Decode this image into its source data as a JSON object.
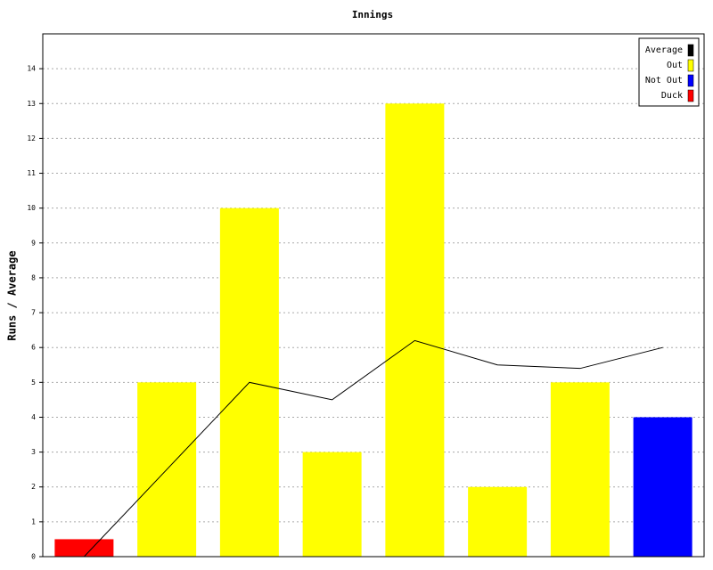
{
  "chart_data": {
    "type": "bar",
    "title": "Innings",
    "y_label": "Runs / Average",
    "series": [
      {
        "name": "Average",
        "type": "line",
        "color": "#000000",
        "values": [
          0,
          2.5,
          5,
          4.5,
          6.2,
          5.5,
          5.4,
          6.0
        ]
      },
      {
        "name": "Out",
        "type": "bar",
        "color": "#ffff00",
        "values": [
          null,
          5,
          10,
          3,
          13,
          2,
          5,
          null
        ]
      },
      {
        "name": "Not Out",
        "type": "bar",
        "color": "#0000ff",
        "values": [
          null,
          null,
          null,
          null,
          null,
          null,
          null,
          4
        ]
      },
      {
        "name": "Duck",
        "type": "bar",
        "color": "#ff0000",
        "values": [
          0.5,
          null,
          null,
          null,
          null,
          null,
          null,
          null
        ]
      }
    ],
    "ylim": [
      0,
      15
    ],
    "yticks": [
      0,
      1,
      2,
      3,
      4,
      5,
      6,
      7,
      8,
      9,
      10,
      11,
      12,
      13,
      14
    ],
    "grid": true,
    "legend": "top-right"
  }
}
